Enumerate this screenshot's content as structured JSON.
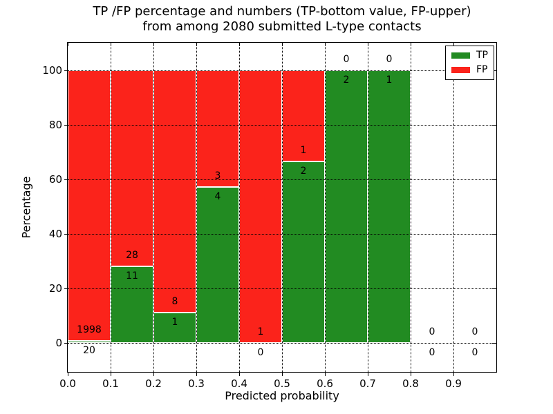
{
  "title": {
    "line1": "TP /FP percentage and numbers (TP-bottom value, FP-upper)",
    "line2": "from among 2080 submitted L-type contacts"
  },
  "axes": {
    "xlabel": "Predicted probability",
    "ylabel": "Percentage",
    "yticks": [
      0,
      20,
      40,
      60,
      80,
      100
    ],
    "xticks": [
      "0.0",
      "0.1",
      "0.2",
      "0.3",
      "0.4",
      "0.5",
      "0.6",
      "0.7",
      "0.8",
      "0.9"
    ]
  },
  "legend": {
    "items": [
      {
        "label": "TP",
        "color": "#228b22"
      },
      {
        "label": "FP",
        "color": "#fb231b"
      }
    ]
  },
  "colors": {
    "tp": "#228b22",
    "fp": "#fb231b",
    "grid": "#000000",
    "axis": "#000000",
    "background": "#ffffff"
  },
  "chart_data": {
    "type": "bar",
    "stacked": true,
    "normalized": "each bin scaled to 100% of bin total",
    "title": "TP /FP percentage and numbers (TP-bottom value, FP-upper) from among 2080 submitted L-type contacts",
    "xlabel": "Predicted probability",
    "ylabel": "Percentage",
    "total_contacts": 2080,
    "bin_width": 0.1,
    "xlim": [
      0,
      1
    ],
    "ylim": [
      -10.5,
      110
    ],
    "grid": true,
    "legend_position": "upper right",
    "categories": [
      "0.0-0.1",
      "0.1-0.2",
      "0.2-0.3",
      "0.3-0.4",
      "0.4-0.5",
      "0.5-0.6",
      "0.6-0.7",
      "0.7-0.8",
      "0.8-0.9",
      "0.9-1.0"
    ],
    "series": [
      {
        "name": "TP",
        "counts": [
          20,
          11,
          1,
          4,
          0,
          2,
          2,
          1,
          0,
          0
        ]
      },
      {
        "name": "FP",
        "counts": [
          1998,
          28,
          8,
          3,
          1,
          1,
          0,
          0,
          0,
          0
        ]
      }
    ],
    "tp_percent_of_bin": [
      1.0,
      28.2,
      11.1,
      57.1,
      0.0,
      66.7,
      100.0,
      100.0,
      null,
      null
    ]
  }
}
